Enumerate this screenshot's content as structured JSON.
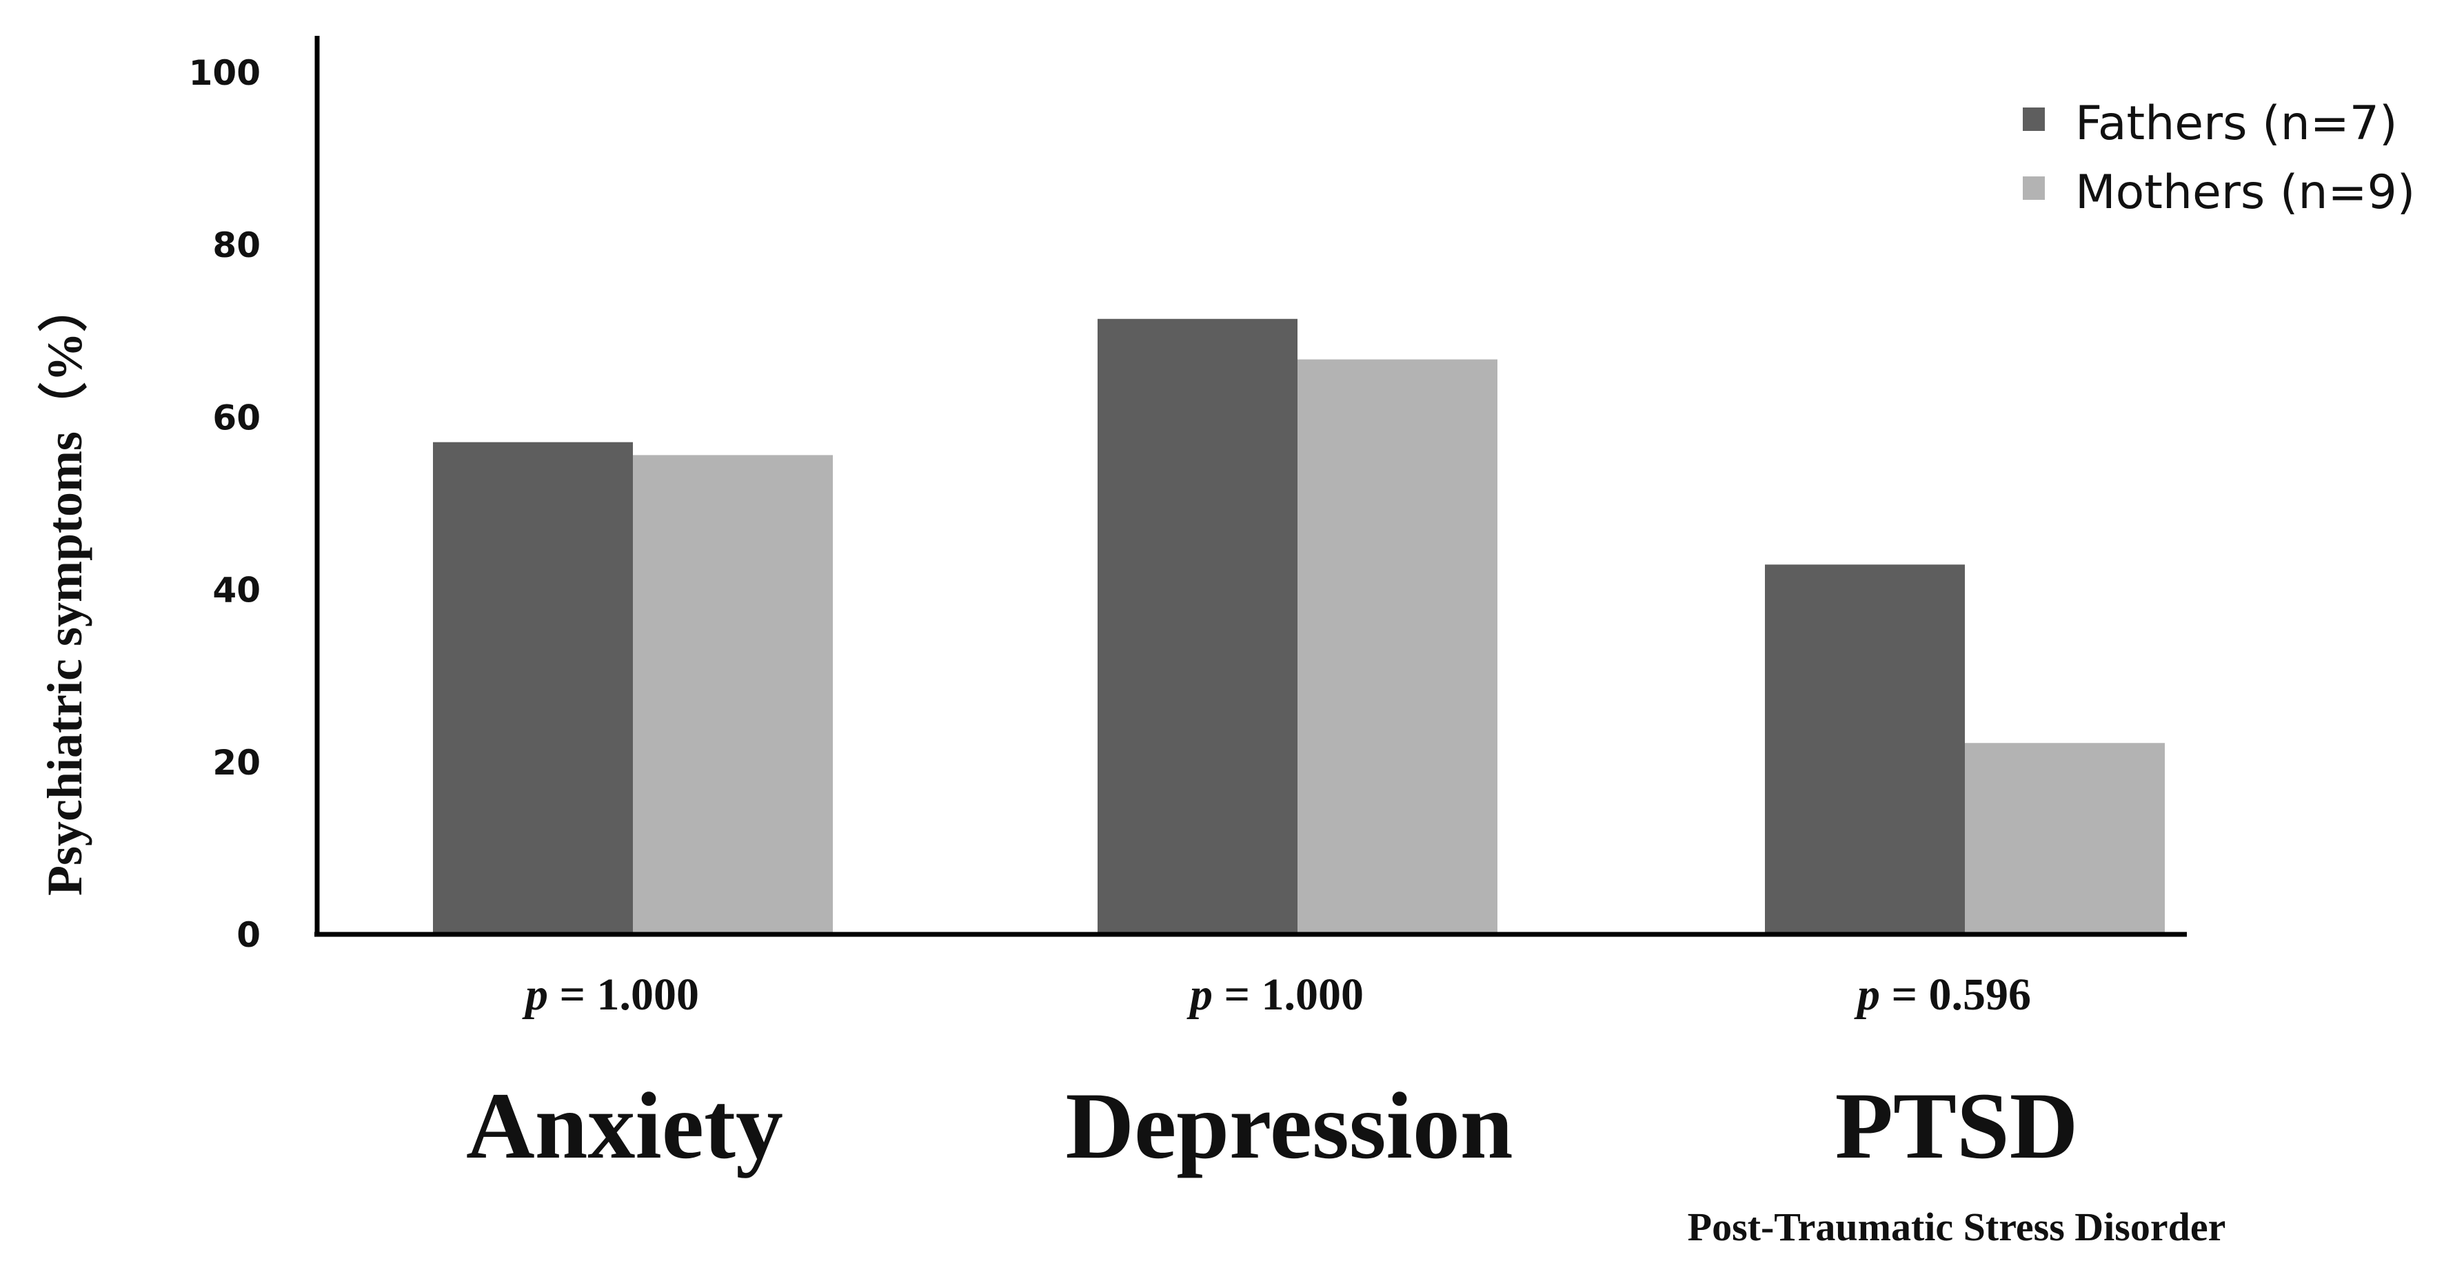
{
  "chart_data": {
    "type": "bar",
    "title": "",
    "xlabel": "",
    "ylabel": "Psychiatric symptoms（%）",
    "ylim": [
      0,
      100
    ],
    "yticks": [
      0,
      20,
      40,
      60,
      80,
      100
    ],
    "categories": [
      "Anxiety",
      "Depression",
      "PTSD"
    ],
    "category_sublabels": [
      "",
      "",
      "Post-Traumatic Stress Disorder"
    ],
    "p_values": [
      "1.000",
      "1.000",
      "0.596"
    ],
    "p_symbol": "p",
    "series": [
      {
        "name": "Fathers (n=7)",
        "color": "#5e5e5e",
        "values": [
          57.1,
          71.4,
          42.9
        ]
      },
      {
        "name": "Mothers (n=9)",
        "color": "#b3b3b3",
        "values": [
          55.6,
          66.7,
          22.2
        ]
      }
    ],
    "legend_position": "top-right",
    "grid": false
  }
}
